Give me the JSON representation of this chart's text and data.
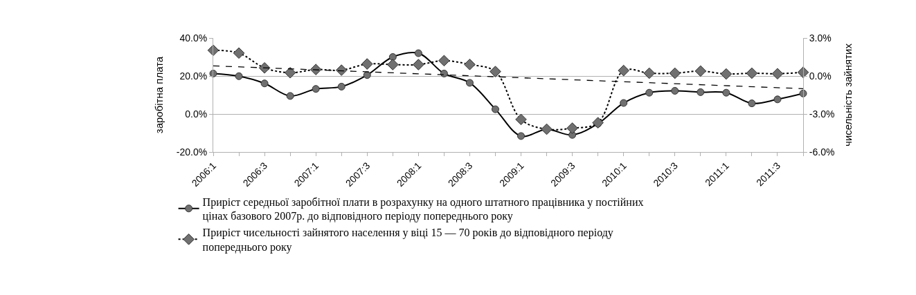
{
  "chart_data": {
    "type": "line",
    "ylabel": "заробітна плата",
    "y2label": "чисельність зайнятих",
    "categories": [
      "2006:1",
      null,
      "2006:3",
      null,
      "2007:1",
      null,
      "2007:3",
      null,
      "2008:1",
      null,
      "2008:3",
      null,
      "2009:1",
      null,
      "2009:3",
      null,
      "2010:1",
      null,
      "2010:3",
      null,
      "2011:1",
      null,
      "2011:3",
      null
    ],
    "series": [
      {
        "name": "Приріст середньої заробітної плати в розрахунку на одного штатного працівника у постійних цінах базового 2007р. до відповідного періоду попереднього року",
        "color": "#000000",
        "marker": "circle",
        "line_style": "solid",
        "values": [
          21.3,
          19.9,
          16.1,
          9.5,
          13.2,
          14.4,
          20.5,
          30.0,
          32.0,
          21.3,
          16.4,
          2.5,
          -11.6,
          -8.1,
          -11.0,
          -5.1,
          5.8,
          11.2,
          12.2,
          11.5,
          11.2,
          5.6,
          7.7,
          10.8
        ]
      },
      {
        "name": "Приріст чисельності зайнятого населення у віці 15 — 70 років до відповідного періоду попереднього року",
        "color": "#000000",
        "marker": "diamond",
        "line_style": "dotted",
        "axis": "y2",
        "values": [
          2.03,
          1.81,
          0.64,
          0.26,
          0.51,
          0.46,
          0.95,
          0.9,
          0.9,
          1.21,
          0.91,
          0.35,
          -3.43,
          -4.2,
          -4.12,
          -3.69,
          0.43,
          0.22,
          0.22,
          0.39,
          0.16,
          0.22,
          0.18,
          0.29
        ]
      },
      {
        "color": "#000000",
        "marker": "none",
        "line_style": "dashed",
        "axis": "y2",
        "values": [
          0.8,
          null,
          null,
          null,
          null,
          null,
          null,
          null,
          null,
          null,
          null,
          null,
          null,
          null,
          null,
          null,
          null,
          null,
          null,
          null,
          null,
          null,
          null,
          -1.0
        ]
      }
    ],
    "ylim": [
      -20,
      40
    ],
    "yticks": [
      {
        "value": -20,
        "label": "-20.0%"
      },
      {
        "value": 0,
        "label": "0.0%"
      },
      {
        "value": 20,
        "label": "20.0%"
      },
      {
        "value": 40,
        "label": "40.0%"
      }
    ],
    "y2lim": [
      -6,
      3
    ],
    "y2ticks": [
      {
        "value": -6,
        "label": "-6.0%"
      },
      {
        "value": -3,
        "label": "-3.0%"
      },
      {
        "value": 0,
        "label": "0.0%"
      },
      {
        "value": 3,
        "label": "3.0%"
      }
    ],
    "grid": "y",
    "legend": "bottom"
  }
}
